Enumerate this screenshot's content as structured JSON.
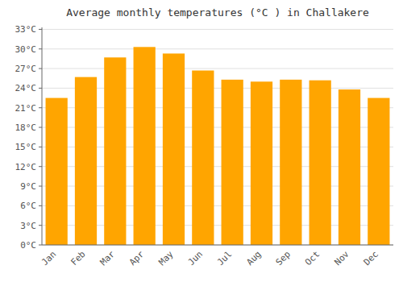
{
  "chart_data": {
    "type": "bar",
    "title": "Average monthly temperatures (°C ) in Challakere",
    "categories": [
      "Jan",
      "Feb",
      "Mar",
      "Apr",
      "May",
      "Jun",
      "Jul",
      "Aug",
      "Sep",
      "Oct",
      "Nov",
      "Dec"
    ],
    "values": [
      22.5,
      25.7,
      28.7,
      30.3,
      29.3,
      26.7,
      25.3,
      25.0,
      25.3,
      25.2,
      23.8,
      22.5
    ],
    "color": "#FFA500",
    "ylim": [
      0,
      33.3
    ],
    "yticks": [
      {
        "value": 0,
        "label": "0°C"
      },
      {
        "value": 3,
        "label": "3°C"
      },
      {
        "value": 6,
        "label": "6°C"
      },
      {
        "value": 9,
        "label": "9°C"
      },
      {
        "value": 12,
        "label": "12°C"
      },
      {
        "value": 15,
        "label": "15°C"
      },
      {
        "value": 18,
        "label": "18°C"
      },
      {
        "value": 21,
        "label": "21°C"
      },
      {
        "value": 24,
        "label": "24°C"
      },
      {
        "value": 27,
        "label": "27°C"
      },
      {
        "value": 30,
        "label": "30°C"
      },
      {
        "value": 33,
        "label": "33°C"
      }
    ],
    "grid": true
  }
}
